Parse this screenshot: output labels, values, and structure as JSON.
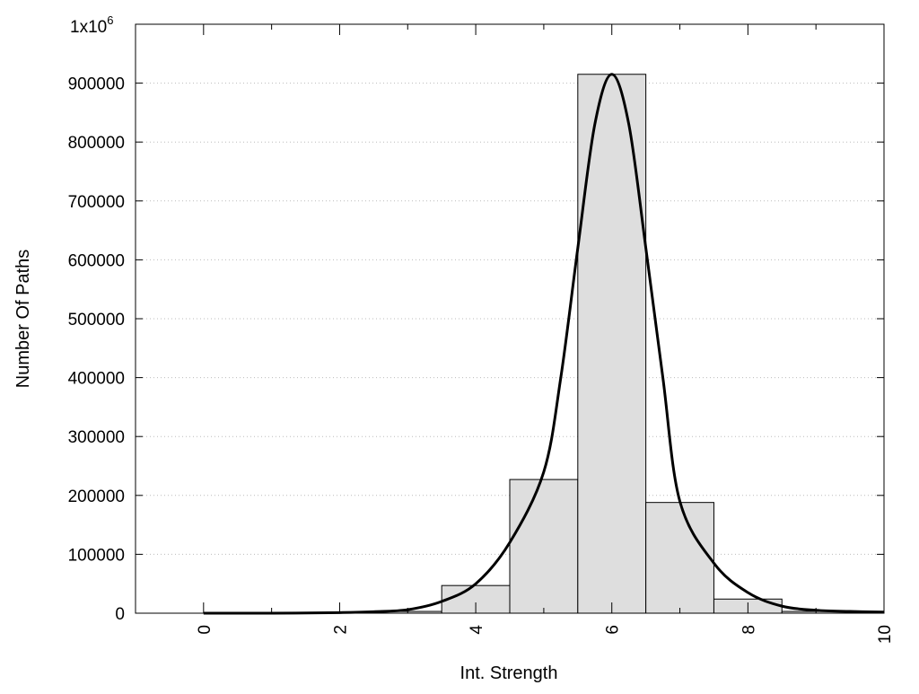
{
  "chart_data": {
    "type": "bar",
    "title": "",
    "xlabel": "Int. Strength",
    "ylabel": "Number Of Paths",
    "xlim": [
      -1,
      10
    ],
    "ylim": [
      0,
      1000000
    ],
    "y_multiplier_label": "1x10",
    "y_multiplier_exponent": "6",
    "x_ticks": [
      0,
      2,
      4,
      6,
      8,
      10
    ],
    "x_tick_labels": [
      "0",
      "2",
      "4",
      "6",
      "8",
      "10"
    ],
    "y_ticks": [
      0,
      100000,
      200000,
      300000,
      400000,
      500000,
      600000,
      700000,
      800000,
      900000
    ],
    "y_tick_labels": [
      "0",
      "100000",
      "200000",
      "300000",
      "400000",
      "500000",
      "600000",
      "700000",
      "800000",
      "900000"
    ],
    "grid": true,
    "legend": "none",
    "histogram": {
      "bin_width": 1,
      "categories": [
        0,
        1,
        2,
        3,
        4,
        5,
        6,
        7,
        8,
        9,
        10
      ],
      "values": [
        0,
        0,
        0,
        3000,
        47000,
        227000,
        915000,
        188000,
        24000,
        3000,
        0
      ]
    },
    "fit_curve": {
      "x": [
        0,
        1,
        2,
        2.5,
        3,
        3.5,
        4,
        4.5,
        5,
        5.25,
        5.5,
        5.75,
        6,
        6.25,
        6.5,
        6.75,
        7,
        7.5,
        8,
        8.5,
        9,
        9.5,
        10
      ],
      "y": [
        0,
        0,
        1000,
        2500,
        6000,
        20000,
        50000,
        120000,
        240000,
        400000,
        620000,
        830000,
        915000,
        830000,
        620000,
        400000,
        190000,
        85000,
        35000,
        12000,
        5000,
        3000,
        2000
      ]
    },
    "colors": {
      "bar_fill": "#dedede",
      "bar_stroke": "#000000",
      "curve": "#000000",
      "grid": "#bbbbbb",
      "frame": "#000000"
    }
  }
}
